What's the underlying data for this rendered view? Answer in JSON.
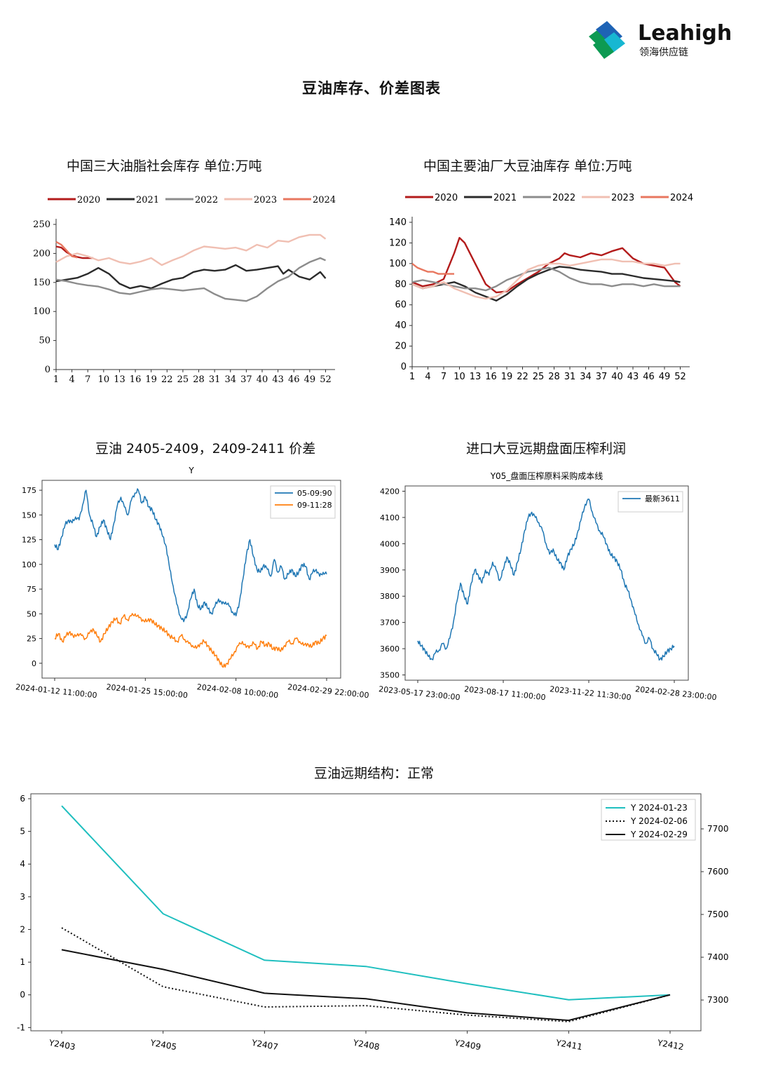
{
  "brand": {
    "name": "Leahigh",
    "sub": "领海供应链",
    "colors": [
      "#1e63b5",
      "#0d9a52",
      "#17b7d2"
    ]
  },
  "page_title": "豆油库存、价差图表",
  "chart_data": [
    {
      "id": "c1",
      "type": "line",
      "title": "中国三大油脂社会库存  单位:万吨",
      "x_ticks": [
        "1",
        "4",
        "7",
        "10",
        "13",
        "16",
        "19",
        "22",
        "25",
        "28",
        "31",
        "34",
        "37",
        "40",
        "43",
        "46",
        "49",
        "52"
      ],
      "xlim": [
        1,
        53
      ],
      "ylim": [
        0,
        250
      ],
      "y_ticks": [
        "0",
        "50",
        "100",
        "150",
        "200",
        "250"
      ],
      "legend": "top",
      "series": [
        {
          "name": "2020",
          "color": "#b31b1b",
          "x": [
            1,
            2,
            3,
            4,
            5,
            6,
            7,
            8
          ],
          "y": [
            212,
            210,
            202,
            197,
            194,
            192,
            192,
            192
          ]
        },
        {
          "name": "2021",
          "color": "#2b2b2b",
          "x": [
            1,
            3,
            5,
            7,
            9,
            11,
            13,
            15,
            17,
            19,
            21,
            23,
            25,
            27,
            29,
            31,
            33,
            35,
            37,
            39,
            41,
            43,
            44,
            45,
            47,
            49,
            51,
            52
          ],
          "y": [
            152,
            155,
            158,
            165,
            175,
            165,
            148,
            140,
            144,
            140,
            148,
            155,
            158,
            168,
            172,
            170,
            172,
            180,
            170,
            172,
            175,
            178,
            165,
            172,
            160,
            155,
            168,
            157
          ]
        },
        {
          "name": "2022",
          "color": "#8c8c8c",
          "x": [
            1,
            3,
            5,
            7,
            9,
            11,
            13,
            15,
            17,
            19,
            21,
            23,
            25,
            27,
            29,
            31,
            33,
            35,
            37,
            39,
            41,
            43,
            45,
            47,
            49,
            51,
            52
          ],
          "y": [
            155,
            152,
            148,
            145,
            143,
            138,
            132,
            130,
            134,
            138,
            140,
            138,
            136,
            138,
            140,
            130,
            122,
            120,
            118,
            126,
            140,
            152,
            160,
            175,
            185,
            192,
            188
          ]
        },
        {
          "name": "2023",
          "color": "#f0bfb2",
          "x": [
            1,
            3,
            5,
            7,
            9,
            11,
            13,
            15,
            17,
            19,
            21,
            23,
            25,
            27,
            29,
            31,
            33,
            35,
            37,
            39,
            41,
            43,
            45,
            47,
            49,
            51,
            52
          ],
          "y": [
            185,
            195,
            200,
            195,
            188,
            192,
            185,
            182,
            186,
            192,
            180,
            188,
            195,
            205,
            212,
            210,
            208,
            210,
            205,
            215,
            210,
            222,
            220,
            228,
            232,
            232,
            225
          ]
        },
        {
          "name": "2024",
          "color": "#e8775f",
          "x": [
            1,
            2,
            3,
            4,
            5
          ],
          "y": [
            220,
            215,
            205,
            195,
            193
          ]
        }
      ]
    },
    {
      "id": "c2",
      "type": "line",
      "title": "中国主要油厂大豆油库存  单位:万吨",
      "x_ticks": [
        "1",
        "4",
        "7",
        "10",
        "13",
        "16",
        "19",
        "22",
        "25",
        "28",
        "31",
        "34",
        "37",
        "40",
        "43",
        "46",
        "49",
        "52"
      ],
      "xlim": [
        1,
        53
      ],
      "ylim": [
        0,
        140
      ],
      "y_ticks": [
        "0",
        "20",
        "40",
        "60",
        "80",
        "100",
        "120",
        "140"
      ],
      "legend": "top",
      "series": [
        {
          "name": "2020",
          "color": "#b31b1b",
          "x": [
            1,
            3,
            5,
            7,
            9,
            10,
            11,
            13,
            15,
            17,
            19,
            21,
            23,
            25,
            27,
            29,
            30,
            31,
            33,
            35,
            37,
            39,
            41,
            43,
            45,
            47,
            49,
            51,
            52
          ],
          "y": [
            82,
            78,
            80,
            85,
            110,
            125,
            120,
            100,
            80,
            72,
            73,
            80,
            86,
            92,
            100,
            105,
            110,
            108,
            106,
            110,
            108,
            112,
            115,
            105,
            100,
            98,
            96,
            82,
            78
          ]
        },
        {
          "name": "2021",
          "color": "#2b2b2b",
          "x": [
            1,
            3,
            5,
            7,
            9,
            11,
            13,
            15,
            17,
            19,
            21,
            23,
            25,
            27,
            29,
            31,
            33,
            35,
            37,
            39,
            41,
            43,
            45,
            47,
            49,
            51,
            52
          ],
          "y": [
            80,
            76,
            78,
            80,
            82,
            78,
            72,
            68,
            64,
            70,
            78,
            85,
            90,
            94,
            97,
            96,
            94,
            93,
            92,
            90,
            90,
            88,
            86,
            85,
            84,
            83,
            82
          ]
        },
        {
          "name": "2022",
          "color": "#8c8c8c",
          "x": [
            1,
            3,
            5,
            7,
            9,
            11,
            13,
            15,
            17,
            19,
            21,
            23,
            25,
            27,
            29,
            31,
            33,
            35,
            37,
            39,
            41,
            43,
            45,
            47,
            49,
            51,
            52
          ],
          "y": [
            82,
            84,
            82,
            80,
            78,
            76,
            76,
            74,
            78,
            84,
            88,
            92,
            94,
            96,
            92,
            86,
            82,
            80,
            80,
            78,
            80,
            80,
            78,
            80,
            78,
            78,
            78
          ]
        },
        {
          "name": "2023",
          "color": "#f0bfb2",
          "x": [
            1,
            3,
            5,
            7,
            9,
            11,
            13,
            15,
            17,
            19,
            21,
            23,
            25,
            27,
            29,
            31,
            33,
            35,
            37,
            39,
            41,
            43,
            45,
            47,
            49,
            51,
            52
          ],
          "y": [
            80,
            76,
            78,
            82,
            76,
            72,
            68,
            66,
            68,
            74,
            84,
            94,
            98,
            100,
            100,
            98,
            100,
            102,
            104,
            104,
            102,
            102,
            100,
            100,
            98,
            100,
            100
          ]
        },
        {
          "name": "2024",
          "color": "#e8775f",
          "x": [
            1,
            2,
            3,
            4,
            5,
            6,
            7,
            8,
            9
          ],
          "y": [
            100,
            96,
            94,
            92,
            92,
            90,
            90,
            90,
            90
          ]
        }
      ]
    },
    {
      "id": "c3",
      "type": "line",
      "title": "豆油 2405-2409，2409-2411 价差",
      "subtitle": "Y",
      "x_tick_labels": [
        "2024-01-12  11:00:00",
        "2024-01-25  15:00:00",
        "2024-02-08  10:00:00",
        "2024-02-29  22:00:00"
      ],
      "ylim": [
        -15,
        185
      ],
      "y_ticks": [
        "0",
        "25",
        "50",
        "75",
        "100",
        "125",
        "150",
        "175"
      ],
      "legend": "top-right",
      "series": [
        {
          "name": "05-09:90",
          "color": "#1f77b4",
          "y": [
            120,
            115,
            128,
            140,
            145,
            142,
            148,
            145,
            160,
            175,
            150,
            140,
            128,
            138,
            145,
            135,
            125,
            142,
            160,
            168,
            158,
            150,
            165,
            172,
            175,
            162,
            168,
            158,
            155,
            145,
            140,
            128,
            118,
            95,
            78,
            60,
            48,
            42,
            50,
            65,
            75,
            58,
            55,
            62,
            55,
            50,
            58,
            65,
            60,
            62,
            58,
            52,
            48,
            62,
            85,
            110,
            125,
            108,
            95,
            92,
            100,
            95,
            88,
            105,
            92,
            98,
            85,
            90,
            95,
            88,
            92,
            100,
            98,
            85,
            92,
            95,
            88,
            92,
            90
          ]
        },
        {
          "name": "09-11:28",
          "color": "#ff7f0e",
          "y": [
            25,
            30,
            22,
            28,
            32,
            26,
            30,
            28,
            25,
            30,
            35,
            28,
            22,
            30,
            36,
            42,
            45,
            40,
            48,
            44,
            48,
            50,
            46,
            44,
            42,
            45,
            40,
            38,
            35,
            32,
            28,
            25,
            22,
            28,
            24,
            20,
            18,
            15,
            20,
            22,
            18,
            12,
            8,
            2,
            -4,
            0,
            5,
            12,
            18,
            22,
            16,
            18,
            20,
            15,
            22,
            18,
            20,
            14,
            16,
            12,
            18,
            22,
            20,
            25,
            22,
            18,
            20,
            16,
            22,
            20,
            25,
            28
          ]
        }
      ]
    },
    {
      "id": "c4",
      "type": "line",
      "title": "进口大豆远期盘面压榨利润",
      "subtitle": "Y05_盘面压榨原料采购成本线",
      "x_tick_labels": [
        "2023-05-17  23:00:00",
        "2023-08-17  11:00:00",
        "2023-11-22  11:30:00",
        "2024-02-28  23:00:00"
      ],
      "ylim": [
        3480,
        4220
      ],
      "y_ticks": [
        "3500",
        "3600",
        "3700",
        "3800",
        "3900",
        "4000",
        "4100",
        "4200"
      ],
      "legend": "top-right",
      "series": [
        {
          "name": "最新3611",
          "color": "#1f77b4",
          "y": [
            3630,
            3610,
            3595,
            3570,
            3560,
            3585,
            3595,
            3620,
            3600,
            3640,
            3700,
            3780,
            3850,
            3800,
            3770,
            3850,
            3900,
            3880,
            3850,
            3900,
            3880,
            3930,
            3900,
            3860,
            3900,
            3950,
            3920,
            3880,
            3930,
            3980,
            4050,
            4100,
            4120,
            4100,
            4080,
            4050,
            4000,
            3960,
            3980,
            3940,
            3930,
            3900,
            3950,
            3980,
            4000,
            4050,
            4100,
            4150,
            4170,
            4120,
            4080,
            4050,
            4030,
            4000,
            3960,
            3950,
            3930,
            3900,
            3850,
            3820,
            3780,
            3730,
            3690,
            3650,
            3620,
            3640,
            3600,
            3580,
            3560,
            3570,
            3590,
            3600,
            3610
          ]
        }
      ]
    },
    {
      "id": "c5",
      "type": "line",
      "title": "豆油远期结构：正常",
      "categories": [
        "Y2403",
        "Y2405",
        "Y2407",
        "Y2408",
        "Y2409",
        "Y2411",
        "Y2412"
      ],
      "ylim": [
        -1.1,
        6.15
      ],
      "y_ticks": [
        "-1",
        "0",
        "1",
        "2",
        "3",
        "4",
        "5",
        "6"
      ],
      "y2_ticks": [
        "7300",
        "7400",
        "7500",
        "7600",
        "7700"
      ],
      "y2lim": [
        7228,
        7782
      ],
      "legend": "top-right",
      "series": [
        {
          "name": "Y  2024-01-23",
          "style": "solid",
          "color": "#1fbfbf",
          "values": [
            5.78,
            2.48,
            1.06,
            0.87,
            0.34,
            -0.15,
            0
          ]
        },
        {
          "name": "Y  2024-02-06",
          "style": "dotted",
          "color": "#111111",
          "values": [
            2.05,
            0.25,
            -0.37,
            -0.33,
            -0.62,
            -0.82,
            0
          ]
        },
        {
          "name": "Y  2024-02-29",
          "style": "solid",
          "color": "#111111",
          "values": [
            1.38,
            0.78,
            0.05,
            -0.12,
            -0.55,
            -0.78,
            0
          ]
        }
      ]
    }
  ]
}
